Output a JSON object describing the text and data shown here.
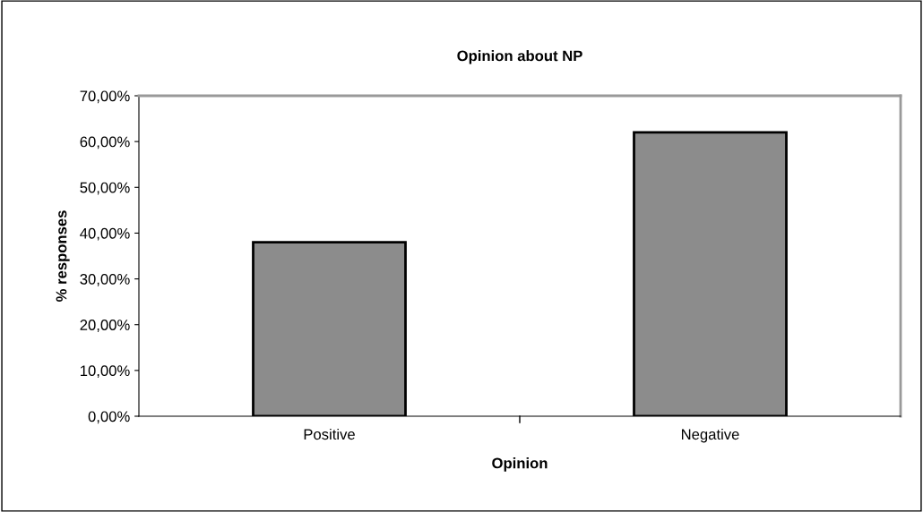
{
  "chart_data": {
    "type": "bar",
    "title": "Opinion about NP",
    "xlabel": "Opinion",
    "ylabel": "% responses",
    "categories": [
      "Positive",
      "Negative"
    ],
    "values": [
      38,
      62
    ],
    "color": "#8c8c8c",
    "ylim": [
      0,
      70
    ],
    "yticks": [
      {
        "value": 0,
        "label": "0,00%"
      },
      {
        "value": 10,
        "label": "10,00%"
      },
      {
        "value": 20,
        "label": "20,00%"
      },
      {
        "value": 30,
        "label": "30,00%"
      },
      {
        "value": 40,
        "label": "40,00%"
      },
      {
        "value": 50,
        "label": "50,00%"
      },
      {
        "value": 60,
        "label": "60,00%"
      },
      {
        "value": 70,
        "label": "70,00%"
      }
    ],
    "grid": false,
    "legend": false
  }
}
